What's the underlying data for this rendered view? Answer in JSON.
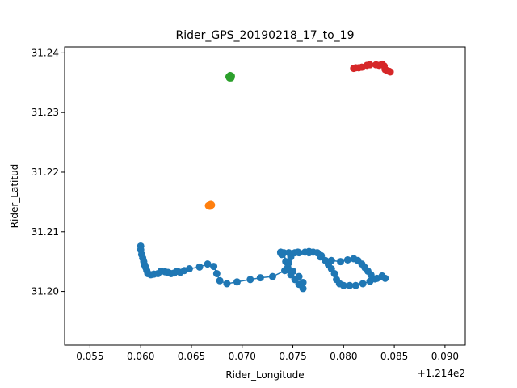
{
  "chart_data": {
    "type": "scatter",
    "title": "Rider_GPS_20190218_17_to_19",
    "xlabel": "Rider_Longitude",
    "ylabel": "Rider_Latitud",
    "x_offset_label": "+1.214e2",
    "xlim": [
      0.0525,
      0.092
    ],
    "ylim": [
      31.191,
      31.241
    ],
    "x_ticks": [
      0.055,
      0.06,
      0.065,
      0.07,
      0.075,
      0.08,
      0.085,
      0.09
    ],
    "x_tick_labels": [
      "0.055",
      "0.060",
      "0.065",
      "0.070",
      "0.075",
      "0.080",
      "0.085",
      "0.090"
    ],
    "y_ticks": [
      31.2,
      31.21,
      31.22,
      31.23,
      31.24
    ],
    "y_tick_labels": [
      "31.20",
      "31.21",
      "31.22",
      "31.23",
      "31.24"
    ],
    "grid": false,
    "legend": "none",
    "series": [
      {
        "color": "#1f77b4",
        "connected": true,
        "x": [
          0.06,
          0.06,
          0.0601,
          0.0602,
          0.0603,
          0.0604,
          0.0605,
          0.0606,
          0.0607,
          0.061,
          0.0613,
          0.0617,
          0.062,
          0.0624,
          0.0627,
          0.063,
          0.0633,
          0.0636,
          0.0639,
          0.0643,
          0.0648,
          0.0658,
          0.0666,
          0.0672,
          0.0675,
          0.0678,
          0.0685,
          0.0695,
          0.0708,
          0.0718,
          0.073,
          0.0742,
          0.0743,
          0.074,
          0.0738,
          0.0738,
          0.0741,
          0.0745,
          0.075,
          0.0756,
          0.076,
          0.076,
          0.0756,
          0.0752,
          0.0748,
          0.0746,
          0.0746,
          0.0748,
          0.0752,
          0.0756,
          0.0762,
          0.0766,
          0.077,
          0.0774,
          0.0778,
          0.0782,
          0.0785,
          0.0788,
          0.0791,
          0.0793,
          0.0796,
          0.08,
          0.0806,
          0.0812,
          0.0819,
          0.0826,
          0.0833,
          0.0838,
          0.0841,
          0.0838,
          0.0831,
          0.0827,
          0.0824,
          0.0821,
          0.0818,
          0.0814,
          0.081,
          0.0804,
          0.0797,
          0.0788,
          0.0777,
          0.0766,
          0.0755,
          0.0746,
          0.0739
        ],
        "y": [
          31.2076,
          31.207,
          31.2062,
          31.2056,
          31.205,
          31.2044,
          31.204,
          31.2035,
          31.203,
          31.2028,
          31.2029,
          31.203,
          31.2034,
          31.2033,
          31.2032,
          31.203,
          31.2031,
          31.2034,
          31.2032,
          31.2035,
          31.2038,
          31.2041,
          31.2046,
          31.2042,
          31.203,
          31.2018,
          31.2013,
          31.2016,
          31.202,
          31.2023,
          31.2025,
          31.2035,
          31.205,
          31.2063,
          31.2065,
          31.2066,
          31.2065,
          31.204,
          31.2034,
          31.2025,
          31.2015,
          31.2005,
          31.2012,
          31.202,
          31.2028,
          31.2036,
          31.2048,
          31.2058,
          31.2065,
          31.2065,
          31.2066,
          31.2067,
          31.2066,
          31.2065,
          31.206,
          31.2052,
          31.2045,
          31.2038,
          31.203,
          31.202,
          31.2013,
          31.201,
          31.201,
          31.201,
          31.2013,
          31.2017,
          31.2022,
          31.2026,
          31.2022,
          31.2025,
          31.2021,
          31.2028,
          31.2034,
          31.204,
          31.2046,
          31.2052,
          31.2055,
          31.2053,
          31.205,
          31.2052,
          31.2058,
          31.2065,
          31.2066,
          31.2065,
          31.2062
        ]
      },
      {
        "color": "#ff7f0e",
        "connected": false,
        "x": [
          0.06668,
          0.06678,
          0.06688,
          0.06698,
          0.06682,
          0.06692
        ],
        "y": [
          31.2144,
          31.2145,
          31.2144,
          31.2145,
          31.2143,
          31.2146
        ]
      },
      {
        "color": "#2ca02c",
        "connected": false,
        "x": [
          0.0687,
          0.06878,
          0.06886,
          0.06894,
          0.06882,
          0.06876,
          0.0689
        ],
        "y": [
          31.236,
          31.2361,
          31.2359,
          31.2361,
          31.2362,
          31.2358,
          31.2358
        ]
      },
      {
        "color": "#d62728",
        "connected": false,
        "x": [
          0.081,
          0.0812,
          0.0815,
          0.0818,
          0.0823,
          0.0826,
          0.0832,
          0.0835,
          0.0838,
          0.084,
          0.0841,
          0.0843,
          0.0845,
          0.0846
        ],
        "y": [
          31.2374,
          31.2375,
          31.2375,
          31.2376,
          31.2379,
          31.238,
          31.238,
          31.2379,
          31.2381,
          31.2378,
          31.2372,
          31.237,
          31.2369,
          31.2368
        ]
      }
    ]
  }
}
